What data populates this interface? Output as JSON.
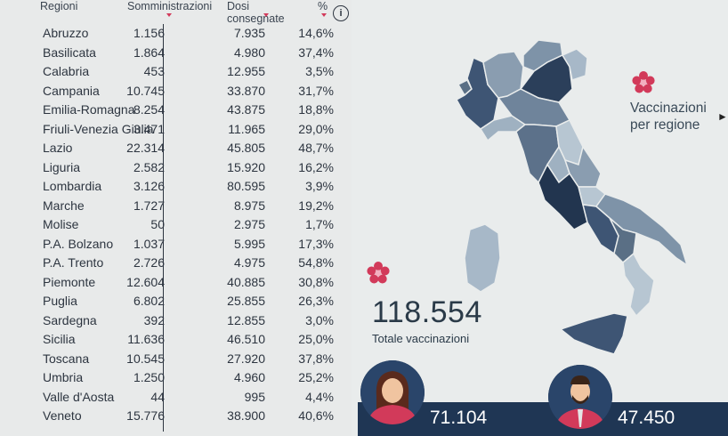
{
  "header": {
    "regioni": "Regioni",
    "somministrazioni": "Somministrazioni",
    "dosi": "Dosi consegnate",
    "pct": "%",
    "info_glyph": "i"
  },
  "rows": [
    {
      "name": "Abruzzo",
      "som": "1.156",
      "dos": "7.935",
      "pct": "14,6%"
    },
    {
      "name": "Basilicata",
      "som": "1.864",
      "dos": "4.980",
      "pct": "37,4%"
    },
    {
      "name": "Calabria",
      "som": "453",
      "dos": "12.955",
      "pct": "3,5%"
    },
    {
      "name": "Campania",
      "som": "10.745",
      "dos": "33.870",
      "pct": "31,7%"
    },
    {
      "name": "Emilia-Romagna",
      "som": "8.254",
      "dos": "43.875",
      "pct": "18,8%"
    },
    {
      "name": "Friuli-Venezia Giulia",
      "som": "3.471",
      "dos": "11.965",
      "pct": "29,0%"
    },
    {
      "name": "Lazio",
      "som": "22.314",
      "dos": "45.805",
      "pct": "48,7%"
    },
    {
      "name": "Liguria",
      "som": "2.582",
      "dos": "15.920",
      "pct": "16,2%"
    },
    {
      "name": "Lombardia",
      "som": "3.126",
      "dos": "80.595",
      "pct": "3,9%"
    },
    {
      "name": "Marche",
      "som": "1.727",
      "dos": "8.975",
      "pct": "19,2%"
    },
    {
      "name": "Molise",
      "som": "50",
      "dos": "2.975",
      "pct": "1,7%"
    },
    {
      "name": "P.A. Bolzano",
      "som": "1.037",
      "dos": "5.995",
      "pct": "17,3%"
    },
    {
      "name": "P.A. Trento",
      "som": "2.726",
      "dos": "4.975",
      "pct": "54,8%"
    },
    {
      "name": "Piemonte",
      "som": "12.604",
      "dos": "40.885",
      "pct": "30,8%"
    },
    {
      "name": "Puglia",
      "som": "6.802",
      "dos": "25.855",
      "pct": "26,3%"
    },
    {
      "name": "Sardegna",
      "som": "392",
      "dos": "12.855",
      "pct": "3,0%"
    },
    {
      "name": "Sicilia",
      "som": "11.636",
      "dos": "46.510",
      "pct": "25,0%"
    },
    {
      "name": "Toscana",
      "som": "10.545",
      "dos": "27.920",
      "pct": "37,8%"
    },
    {
      "name": "Umbria",
      "som": "1.250",
      "dos": "4.960",
      "pct": "25,2%"
    },
    {
      "name": "Valle d'Aosta",
      "som": "44",
      "dos": "995",
      "pct": "4,4%"
    },
    {
      "name": "Veneto",
      "som": "15.776",
      "dos": "38.900",
      "pct": "40,6%"
    }
  ],
  "map": {
    "title_line1": "Vaccinazioni",
    "title_line2": "per regione",
    "icon": "flower-icon"
  },
  "total": {
    "value": "118.554",
    "label": "Totale vaccinazioni"
  },
  "female": {
    "value": "71.104",
    "icon": "woman-avatar-icon"
  },
  "male": {
    "value": "47.450",
    "icon": "man-avatar-icon"
  },
  "colors": {
    "accent": "#d23a5a",
    "bar": "#1f3654",
    "map_dark": "#2b3f5a",
    "map_light": "#b7c6d2"
  }
}
